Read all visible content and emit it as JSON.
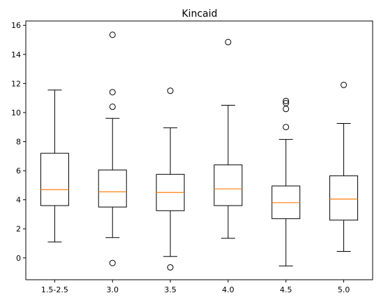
{
  "chart_data": {
    "type": "boxplot",
    "title": "Kincaid",
    "xlabel": "",
    "ylabel": "",
    "ylim": [
      -1.5,
      16.3
    ],
    "yticks": [
      0,
      2,
      4,
      6,
      8,
      10,
      12,
      14,
      16
    ],
    "grid": false,
    "categories": [
      "1.5-2.5",
      "3.0",
      "3.5",
      "4.0",
      "4.5",
      "5.0"
    ],
    "boxes": [
      {
        "category": "1.5-2.5",
        "whisker_low": 1.1,
        "q1": 3.6,
        "median": 4.7,
        "q3": 7.2,
        "whisker_high": 11.55,
        "outliers": []
      },
      {
        "category": "3.0",
        "whisker_low": 1.4,
        "q1": 3.5,
        "median": 4.55,
        "q3": 6.05,
        "whisker_high": 9.6,
        "outliers": [
          -0.35,
          10.4,
          11.4,
          15.35
        ]
      },
      {
        "category": "3.5",
        "whisker_low": 0.1,
        "q1": 3.25,
        "median": 4.5,
        "q3": 5.75,
        "whisker_high": 8.95,
        "outliers": [
          -0.65,
          11.5
        ]
      },
      {
        "category": "4.0",
        "whisker_low": 1.35,
        "q1": 3.6,
        "median": 4.75,
        "q3": 6.4,
        "whisker_high": 10.5,
        "outliers": [
          14.85
        ]
      },
      {
        "category": "4.5",
        "whisker_low": -0.55,
        "q1": 2.7,
        "median": 3.8,
        "q3": 4.95,
        "whisker_high": 8.15,
        "outliers": [
          9.0,
          10.25,
          10.65,
          10.8
        ]
      },
      {
        "category": "5.0",
        "whisker_low": 0.45,
        "q1": 2.6,
        "median": 4.05,
        "q3": 5.65,
        "whisker_high": 9.25,
        "outliers": [
          11.9
        ]
      }
    ],
    "colors": {
      "box": "#000000",
      "median": "#ff7f0e",
      "outlier": "#000000"
    }
  }
}
